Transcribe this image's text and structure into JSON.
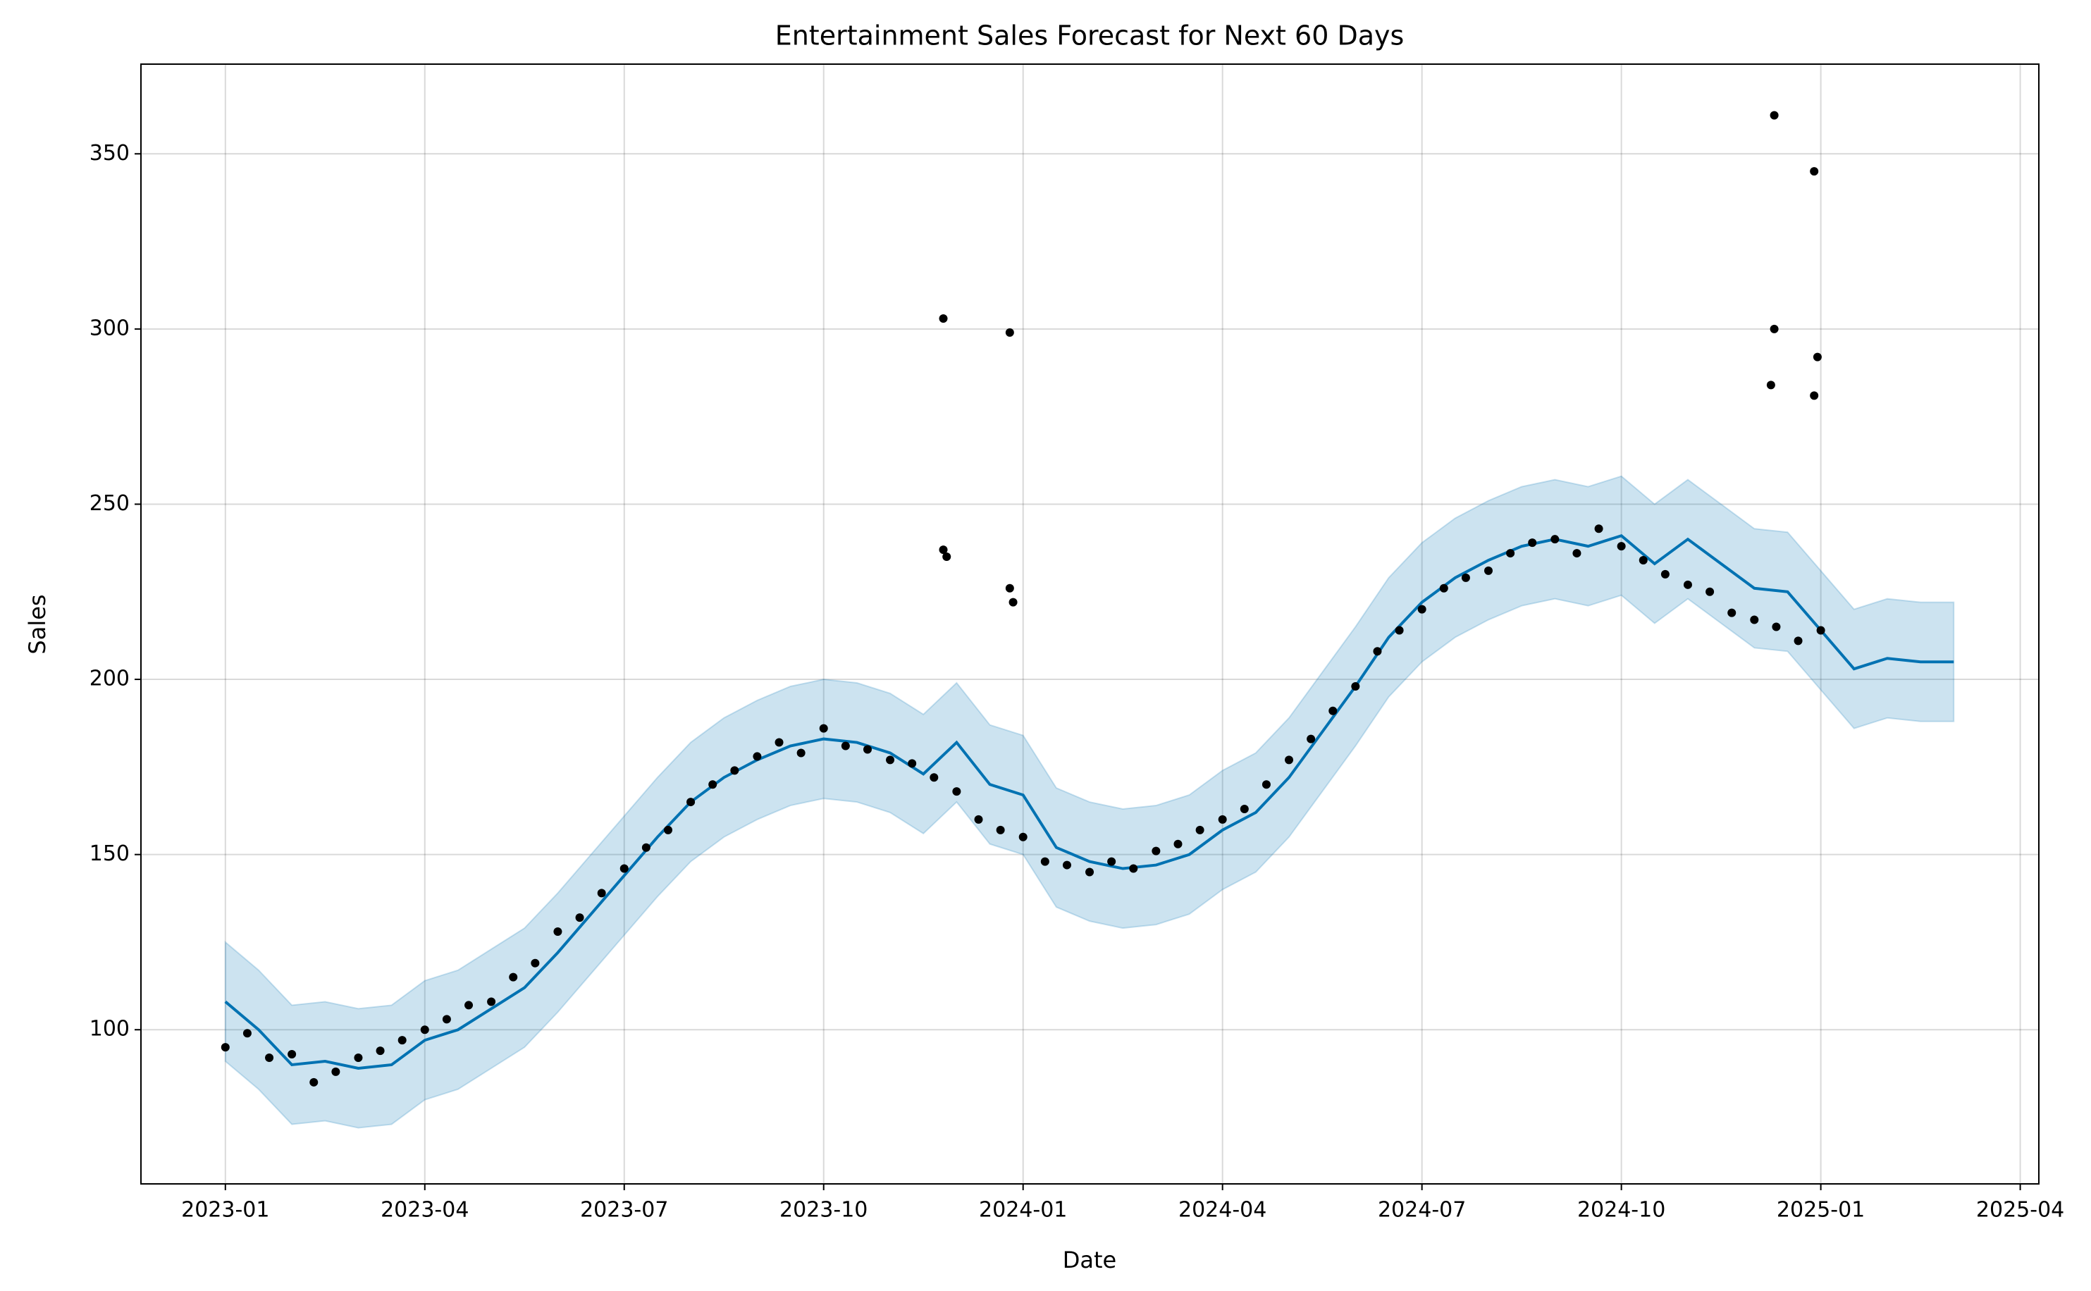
{
  "chart_data": {
    "type": "line",
    "title": "Entertainment Sales Forecast for Next 60 Days",
    "x_label": "Date",
    "y_label": "Sales",
    "grid": true,
    "xlim": [
      -1.27,
      27.28
    ],
    "ylim": [
      56,
      375.6
    ],
    "xticks": [
      {
        "value": 0,
        "label": "2023-01"
      },
      {
        "value": 3,
        "label": "2023-04"
      },
      {
        "value": 6,
        "label": "2023-07"
      },
      {
        "value": 9,
        "label": "2023-10"
      },
      {
        "value": 12,
        "label": "2024-01"
      },
      {
        "value": 15,
        "label": "2024-04"
      },
      {
        "value": 18,
        "label": "2024-07"
      },
      {
        "value": 21,
        "label": "2024-10"
      },
      {
        "value": 24,
        "label": "2025-01"
      },
      {
        "value": 27,
        "label": "2025-04"
      }
    ],
    "yticks": [
      100,
      150,
      200,
      250,
      300,
      350
    ],
    "forecast": {
      "color": "#0072B2",
      "x": [
        0,
        0.5,
        1,
        1.5,
        2,
        2.5,
        3,
        3.5,
        4,
        4.5,
        5,
        5.5,
        6,
        6.5,
        7,
        7.5,
        8,
        8.5,
        9,
        9.5,
        10,
        10.5,
        11,
        11.5,
        12,
        12.5,
        13,
        13.5,
        14,
        14.5,
        15,
        15.5,
        16,
        16.5,
        17,
        17.5,
        18,
        18.5,
        19,
        19.5,
        20,
        20.5,
        21,
        21.5,
        22,
        22.5,
        23,
        23.5,
        24,
        24.5,
        25,
        25.5,
        26
      ],
      "values": [
        108,
        100,
        90,
        91,
        89,
        90,
        97,
        100,
        106,
        112,
        122,
        133,
        144,
        155,
        165,
        172,
        177,
        181,
        183,
        182,
        179,
        173,
        182,
        170,
        167,
        152,
        148,
        146,
        147,
        150,
        157,
        162,
        172,
        185,
        198,
        212,
        222,
        229,
        234,
        238,
        240,
        238,
        241,
        233,
        240,
        233,
        226,
        225,
        214,
        203,
        206,
        205,
        205
      ],
      "lower": [
        91,
        83,
        73,
        74,
        72,
        73,
        80,
        83,
        89,
        95,
        105,
        116,
        127,
        138,
        148,
        155,
        160,
        164,
        166,
        165,
        162,
        156,
        165,
        153,
        150,
        135,
        131,
        129,
        130,
        133,
        140,
        145,
        155,
        168,
        181,
        195,
        205,
        212,
        217,
        221,
        223,
        221,
        224,
        216,
        223,
        216,
        209,
        208,
        197,
        186,
        189,
        188,
        188
      ],
      "upper": [
        125,
        117,
        107,
        108,
        106,
        107,
        114,
        117,
        123,
        129,
        139,
        150,
        161,
        172,
        182,
        189,
        194,
        198,
        200,
        199,
        196,
        190,
        199,
        187,
        184,
        169,
        165,
        163,
        164,
        167,
        174,
        179,
        189,
        202,
        215,
        229,
        239,
        246,
        251,
        255,
        257,
        255,
        258,
        250,
        257,
        250,
        243,
        242,
        231,
        220,
        223,
        222,
        222
      ]
    },
    "observed": {
      "color": "#000000",
      "x": [
        0,
        0.33,
        0.66,
        1,
        1.33,
        1.66,
        2,
        2.33,
        2.66,
        3,
        3.33,
        3.66,
        4,
        4.33,
        4.66,
        5,
        5.33,
        5.66,
        6,
        6.33,
        6.66,
        7,
        7.33,
        7.66,
        8,
        8.33,
        8.66,
        9,
        9.33,
        9.66,
        10,
        10.33,
        10.66,
        11,
        11.33,
        11.66,
        12,
        12.33,
        12.66,
        13,
        13.33,
        13.66,
        14,
        14.33,
        14.66,
        15,
        15.33,
        15.66,
        16,
        16.33,
        16.66,
        17,
        17.33,
        17.66,
        18,
        18.33,
        18.66,
        19,
        19.33,
        19.66,
        20,
        20.33,
        20.66,
        21,
        21.33,
        21.66,
        22,
        22.33,
        22.66,
        23,
        23.33,
        23.66,
        24,
        10.8,
        10.8,
        10.85,
        11.8,
        11.8,
        11.85,
        23.3,
        23.3,
        23.25,
        23.9,
        23.95,
        23.9
      ],
      "values": [
        95,
        99,
        92,
        93,
        85,
        88,
        92,
        94,
        97,
        100,
        103,
        107,
        108,
        115,
        119,
        128,
        132,
        139,
        146,
        152,
        157,
        165,
        170,
        174,
        178,
        182,
        179,
        186,
        181,
        180,
        177,
        176,
        172,
        168,
        160,
        157,
        155,
        148,
        147,
        145,
        148,
        146,
        151,
        153,
        157,
        160,
        163,
        170,
        177,
        183,
        191,
        198,
        208,
        214,
        220,
        226,
        229,
        231,
        236,
        239,
        240,
        236,
        243,
        238,
        234,
        230,
        227,
        225,
        219,
        217,
        215,
        211,
        214,
        303,
        237,
        235,
        299,
        226,
        222,
        361,
        300,
        284,
        345,
        292,
        281
      ]
    }
  }
}
